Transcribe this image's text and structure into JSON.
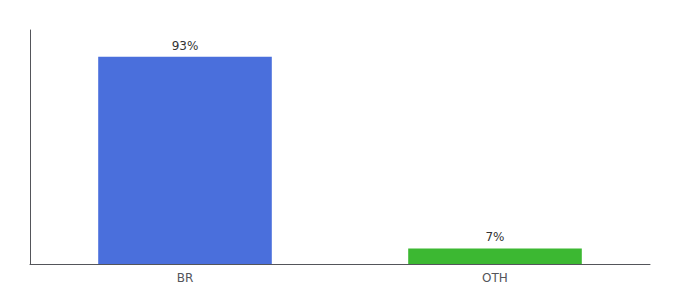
{
  "chart_data": {
    "type": "bar",
    "categories": [
      "BR",
      "OTH"
    ],
    "values": [
      93,
      7
    ],
    "value_labels": [
      "93%",
      "7%"
    ],
    "colors": [
      "#4a6fdc",
      "#3cb832"
    ],
    "ylim": [
      0,
      105
    ],
    "grid": false,
    "data_labels": true,
    "tick_labels": "x"
  }
}
